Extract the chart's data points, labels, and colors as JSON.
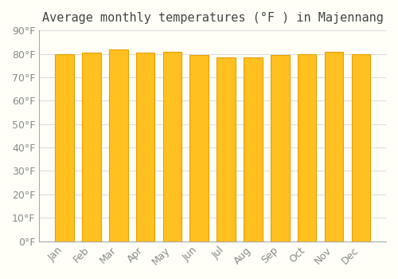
{
  "title": "Average monthly temperatures (°F ) in Majennang",
  "months": [
    "Jan",
    "Feb",
    "Mar",
    "Apr",
    "May",
    "Jun",
    "Jul",
    "Aug",
    "Sep",
    "Oct",
    "Nov",
    "Dec"
  ],
  "values": [
    80,
    80.5,
    82,
    80.5,
    81,
    79.5,
    78.5,
    78.5,
    79.5,
    80,
    81,
    80
  ],
  "bar_color_main": "#FFC020",
  "bar_color_edge": "#E8A000",
  "background_color": "#FFFFF8",
  "grid_color": "#DDDDDD",
  "ylim": [
    0,
    90
  ],
  "yticks": [
    0,
    10,
    20,
    30,
    40,
    50,
    60,
    70,
    80,
    90
  ],
  "ytick_labels": [
    "0°F",
    "10°F",
    "20°F",
    "30°F",
    "40°F",
    "50°F",
    "60°F",
    "70°F",
    "80°F",
    "90°F"
  ],
  "title_fontsize": 11,
  "tick_fontsize": 9,
  "font_color": "#888888"
}
